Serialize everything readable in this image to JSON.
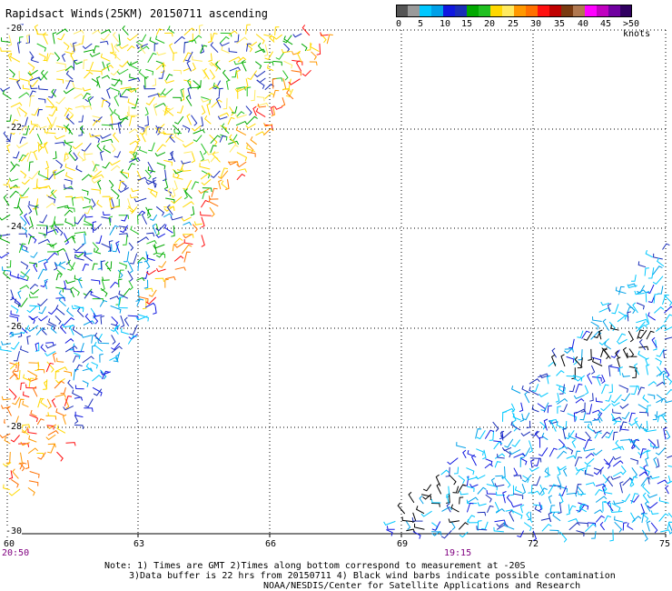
{
  "title": "Rapidsact Winds(25KM) 20150711 ascending",
  "color_scale": {
    "blocks": [
      "#555555",
      "#9a9a9a",
      "#00c8ff",
      "#00a0e8",
      "#1018e0",
      "#1a2eb8",
      "#00a800",
      "#20c020",
      "#ffd800",
      "#ffea60",
      "#ff9800",
      "#ff7000",
      "#ff1010",
      "#c00000",
      "#7a3a10",
      "#b07850",
      "#ff00ff",
      "#c000c0",
      "#7000a0",
      "#300060"
    ],
    "labels": [
      "0",
      "5",
      "10",
      "15",
      "20",
      "25",
      "30",
      "35",
      "40",
      "45",
      ">50 knots"
    ]
  },
  "y_axis": {
    "labels": [
      "-20",
      "-22",
      "-24",
      "-26",
      "-28",
      "-30"
    ]
  },
  "x_axis": {
    "labels": [
      "60",
      "63",
      "66",
      "69",
      "72",
      "75"
    ]
  },
  "time_labels": [
    {
      "text": "20:50",
      "color": "#800080"
    },
    {
      "text": "19:15",
      "color": "#800080"
    }
  ],
  "notes": [
    "Note: 1) Times are GMT 2)Times along bottom correspond to measurement at -20S",
    "3)Data buffer is 22 hrs from 20150711 4) Black wind barbs indicate possible contamination",
    "NOAA/NESDIS/Center for Satellite Applications and Research"
  ]
}
